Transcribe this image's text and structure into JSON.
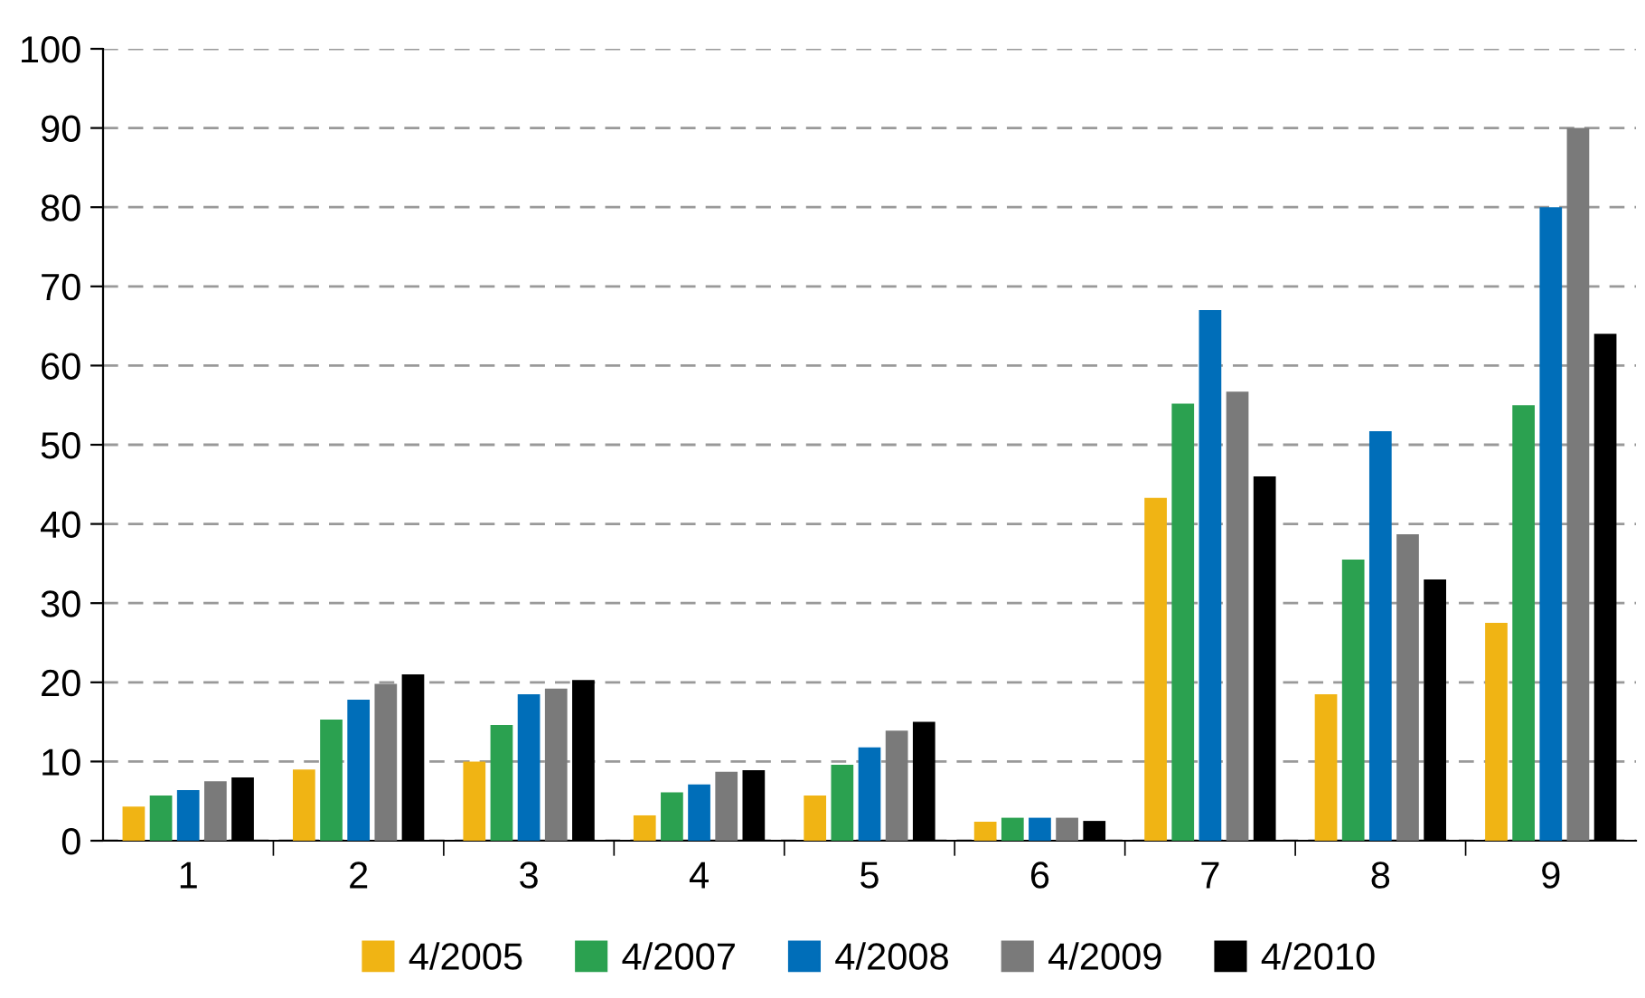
{
  "chart_data": {
    "type": "bar",
    "categories": [
      "1",
      "2",
      "3",
      "4",
      "5",
      "6",
      "7",
      "8",
      "9"
    ],
    "series": [
      {
        "name": "4/2005",
        "color": "#f0b414",
        "values": [
          4.3,
          9,
          10,
          3.2,
          5.7,
          2.4,
          43.3,
          18.5,
          27.5
        ]
      },
      {
        "name": "4/2007",
        "color": "#2ba150",
        "values": [
          5.7,
          15.3,
          14.6,
          6.1,
          9.6,
          2.9,
          55.2,
          35.5,
          55
        ]
      },
      {
        "name": "4/2008",
        "color": "#006eb9",
        "values": [
          6.4,
          17.8,
          18.5,
          7.1,
          11.8,
          2.9,
          67,
          51.7,
          80
        ]
      },
      {
        "name": "4/2009",
        "color": "#7a7a7a",
        "values": [
          7.5,
          19.8,
          19.2,
          8.7,
          13.9,
          2.9,
          56.7,
          38.7,
          90
        ]
      },
      {
        "name": "4/2010",
        "color": "#000000",
        "values": [
          8,
          21,
          20.3,
          8.9,
          15,
          2.5,
          46,
          33,
          64
        ]
      }
    ],
    "ylim": [
      0,
      100
    ],
    "yticks": [
      0,
      10,
      20,
      30,
      40,
      50,
      60,
      70,
      80,
      90,
      100
    ],
    "grid": "y",
    "legend": "bottom"
  }
}
